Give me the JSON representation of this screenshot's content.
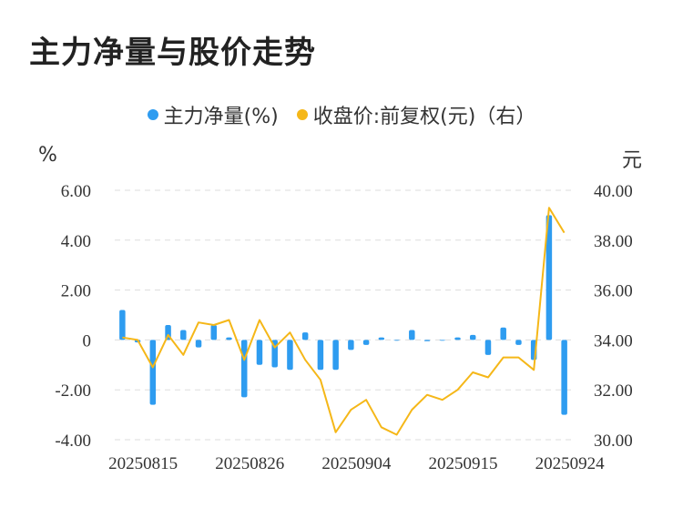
{
  "title": "主力净量与股价走势",
  "legend": {
    "left_label": "主力净量(%)",
    "right_label": "收盘价:前复权(元)（右）"
  },
  "units": {
    "left": "%",
    "right": "元"
  },
  "colors": {
    "bar": "#2E9CF0",
    "line": "#F5B718",
    "grid": "#DDDDDD",
    "text": "#333333"
  },
  "chart_data": {
    "type": "bar+line",
    "y_left": {
      "ticks": [
        "6.00",
        "4.00",
        "2.00",
        "0",
        "-2.00",
        "-4.00"
      ],
      "min": -4,
      "max": 6
    },
    "y_right": {
      "ticks": [
        "40.00",
        "38.00",
        "36.00",
        "34.00",
        "32.00",
        "30.00"
      ],
      "min": 30,
      "max": 40
    },
    "x_tick_labels": [
      "20250815",
      "20250826",
      "20250904",
      "20250915",
      "20250924"
    ],
    "x_tick_index": [
      1,
      8,
      15,
      22,
      29
    ],
    "series": [
      {
        "name": "主力净量(%)",
        "axis": "left",
        "values": [
          1.2,
          -0.1,
          -2.6,
          0.6,
          0.4,
          -0.3,
          0.6,
          0.1,
          -2.3,
          -1.0,
          -1.1,
          -1.2,
          0.3,
          -1.2,
          -1.2,
          -0.4,
          -0.2,
          0.1,
          0.0,
          0.4,
          -0.05,
          0.0,
          0.1,
          0.2,
          -0.6,
          0.5,
          -0.2,
          -0.8,
          5.0,
          -3.0
        ]
      },
      {
        "name": "收盘价:前复权(元)（右）",
        "axis": "right",
        "values": [
          34.1,
          34.0,
          32.9,
          34.2,
          33.4,
          34.7,
          34.6,
          34.8,
          33.2,
          34.8,
          33.7,
          34.3,
          33.2,
          32.4,
          30.3,
          31.2,
          31.6,
          30.5,
          30.2,
          31.2,
          31.8,
          31.6,
          32.0,
          32.7,
          32.5,
          33.3,
          33.3,
          32.8,
          39.3,
          38.3
        ]
      }
    ]
  }
}
